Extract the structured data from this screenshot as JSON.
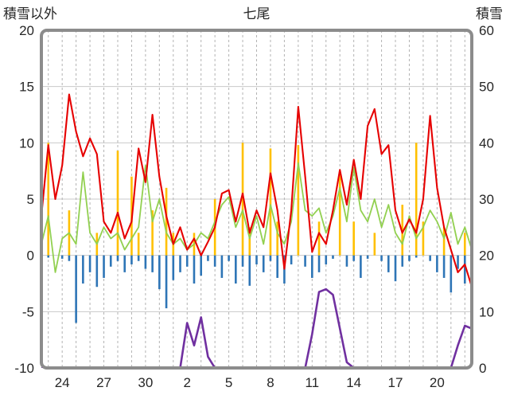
{
  "title": "七尾",
  "left_axis_title": "積雪以外",
  "right_axis_title": "積雪",
  "colors": {
    "background": "#ffffff",
    "plot_border": "#8c8c8c",
    "h_grid": "#c9c9c9",
    "v_grid": "#b3b3b3",
    "text": "#262626",
    "red_line": "#e60000",
    "green_line": "#92d050",
    "blue_bars": "#2e75b6",
    "orange_bars": "#ffc000",
    "purple_line": "#7030a0"
  },
  "chart_data": {
    "type": "line",
    "title": "七尾",
    "grid": "on",
    "legend": "none",
    "left_axis": {
      "label": "積雪以外",
      "min": -10,
      "max": 20,
      "ticks": [
        20,
        15,
        10,
        5,
        0,
        -5,
        -10
      ]
    },
    "right_axis": {
      "label": "積雪",
      "min": 0,
      "max": 60,
      "ticks": [
        60,
        50,
        40,
        30,
        20,
        10,
        0
      ]
    },
    "x_axis": {
      "domain": [
        0,
        31
      ],
      "tick_labels": [
        "24",
        "27",
        "30",
        "2",
        "5",
        "8",
        "11",
        "14",
        "17",
        "20"
      ],
      "tick_offsets": [
        1.5,
        4.5,
        7.5,
        10.5,
        13.5,
        16.5,
        19.5,
        22.5,
        25.5,
        28.5
      ],
      "day_gridlines": {
        "start": 0.5,
        "step": 1,
        "end": 30.5,
        "style": "dashed"
      }
    },
    "sample_step_days": 0.5,
    "series": [
      {
        "name": "orange-bars-up",
        "type": "bar",
        "direction": "up",
        "axis": "left",
        "color": "#ffc000",
        "values": [
          0,
          10,
          0,
          0,
          4,
          0,
          0,
          0,
          2,
          0,
          0,
          9.3,
          0,
          7,
          2,
          0,
          4,
          0,
          6,
          2,
          0,
          0,
          2,
          0,
          0,
          5,
          0,
          0,
          0,
          10,
          2.5,
          0,
          0,
          9.5,
          3,
          0,
          0,
          9.8,
          0,
          0,
          3,
          0,
          0,
          7.5,
          0,
          3,
          0,
          0,
          2,
          0,
          0,
          0,
          4.5,
          0,
          10,
          3,
          0,
          0,
          2.5,
          0,
          0,
          2,
          0
        ]
      },
      {
        "name": "blue-bars-down",
        "type": "bar",
        "direction": "down",
        "axis": "left",
        "color": "#2e75b6",
        "values": [
          0.4,
          0.2,
          0,
          0.3,
          0.5,
          6,
          2.5,
          1.5,
          2.8,
          2,
          1,
          0.5,
          1.5,
          0.8,
          0.5,
          1.2,
          1.5,
          3,
          4.7,
          2.2,
          1.5,
          1,
          2.5,
          1.8,
          0.5,
          1,
          2,
          0.5,
          2.5,
          1,
          2.7,
          0.8,
          1.5,
          0.5,
          2,
          2.5,
          0.8,
          0,
          1,
          2,
          1.5,
          0.8,
          0.3,
          0,
          1,
          0.5,
          2,
          0.3,
          0,
          0.5,
          1.5,
          2.3,
          1,
          0.5,
          0.2,
          0,
          0.5,
          1.5,
          2,
          3.3,
          1.2,
          2.5,
          1
        ]
      },
      {
        "name": "green-line",
        "type": "line",
        "axis": "left",
        "color": "#92d050",
        "values": [
          1,
          3.5,
          -1.5,
          1.5,
          2,
          1,
          7.4,
          2,
          1,
          2.5,
          1.5,
          2,
          0.5,
          1.5,
          2.5,
          8,
          3,
          5,
          2,
          1,
          1.5,
          0.5,
          1,
          2,
          1.5,
          3,
          4.5,
          5.2,
          2.5,
          4,
          1.5,
          3.5,
          1,
          4.5,
          2,
          1,
          3,
          8.2,
          4,
          3.5,
          4.2,
          2,
          3.5,
          6,
          3,
          7.8,
          4,
          3,
          5,
          2.5,
          4.5,
          2,
          1,
          3.5,
          1.5,
          2.5,
          4,
          3,
          1.5,
          3.8,
          1,
          2.5,
          0.5
        ]
      },
      {
        "name": "red-line",
        "type": "line",
        "axis": "left",
        "color": "#e60000",
        "values": [
          3.5,
          9.8,
          5,
          8,
          14.3,
          11,
          8.8,
          10.4,
          9,
          3,
          2,
          3.8,
          1.5,
          3,
          9.5,
          6.5,
          12.5,
          7,
          3.5,
          1,
          2.5,
          0.5,
          1.5,
          0,
          1.2,
          2.5,
          5.5,
          5.8,
          3,
          5.5,
          2,
          4,
          2.5,
          7.3,
          4,
          -1.2,
          4,
          13.2,
          7,
          0.3,
          2,
          1,
          4,
          7.6,
          4.5,
          8.5,
          5,
          11.5,
          13,
          9,
          9.8,
          4,
          2,
          3.2,
          2,
          5,
          12.4,
          6,
          2.5,
          0.5,
          -1.5,
          -0.8,
          -2.8
        ]
      },
      {
        "name": "purple-line-snow",
        "type": "line",
        "axis": "right",
        "color": "#7030a0",
        "values": [
          0,
          0,
          0,
          0,
          0,
          0,
          0,
          0,
          0,
          0,
          0,
          0,
          0,
          0,
          0,
          0,
          0,
          0,
          0,
          0,
          0,
          8,
          4,
          9,
          2,
          0,
          0,
          0,
          0,
          0,
          0,
          0,
          0,
          0,
          0,
          0,
          0,
          0,
          0,
          6,
          13.5,
          14,
          13,
          7,
          1,
          0,
          0,
          0,
          0,
          0,
          0,
          0,
          0,
          0,
          0,
          0,
          0,
          0,
          0,
          0,
          4,
          7.5,
          7
        ]
      }
    ]
  }
}
